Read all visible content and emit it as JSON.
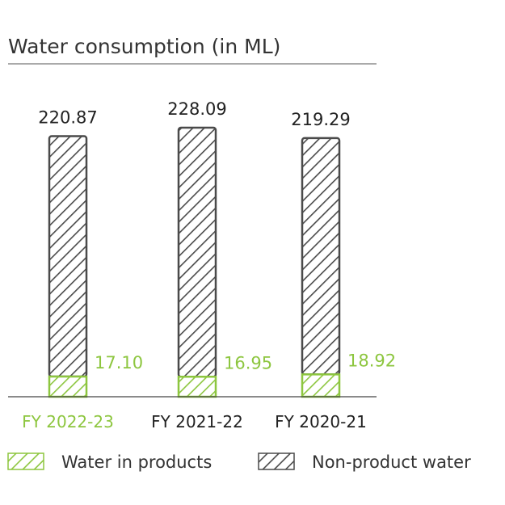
{
  "colors": {
    "text": "#333333",
    "non_product": "#4a4a4a",
    "product": "#8dc63f"
  },
  "chart_data": {
    "type": "bar",
    "stacked": true,
    "title": "Water consumption (in ML)",
    "categories": [
      "FY 2022-23",
      "FY 2021-22",
      "FY 2020-21"
    ],
    "highlight_category": "FY 2022-23",
    "totals": [
      "220.87",
      "228.09",
      "219.29"
    ],
    "series": [
      {
        "name": "Water in products",
        "values": [
          17.1,
          16.95,
          18.92
        ],
        "labels": [
          "17.10",
          "16.95",
          "18.92"
        ],
        "color": "#8dc63f",
        "pattern": "diagonal-hatch"
      },
      {
        "name": "Non-product water",
        "values": [
          203.77,
          211.14,
          200.37
        ],
        "color": "#4a4a4a",
        "pattern": "diagonal-hatch"
      }
    ],
    "ylim": [
      0,
      228.09
    ],
    "grid": false,
    "legend_position": "bottom"
  }
}
